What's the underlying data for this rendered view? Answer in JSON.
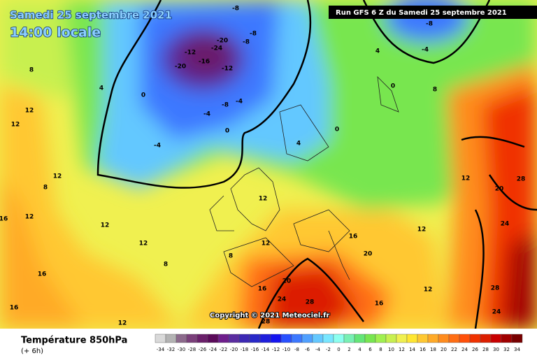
{
  "header": {
    "date": "Samedi 25 septembre 2021",
    "time": "14:00 locale",
    "run": "Run GFS 6 Z du Samedi 25 septembre 2021"
  },
  "map": {
    "copyright": "Copyright © 2021 Meteociel.fr",
    "contour_labels": [
      -8,
      -20,
      -24,
      -12,
      -20,
      -16,
      -12,
      -8,
      -8,
      -4,
      -8,
      -4,
      -4,
      0,
      0,
      4,
      8,
      12,
      12,
      8,
      12,
      12,
      16,
      12,
      12,
      8,
      16,
      16,
      12,
      16,
      20,
      24,
      28,
      28,
      16,
      12,
      24,
      28,
      24,
      28,
      20,
      12,
      8,
      4,
      0,
      -8,
      -4,
      12,
      20,
      16,
      12,
      8,
      12,
      4,
      0
    ]
  },
  "legend": {
    "title": "Température 850hPa",
    "subtitle": "(+ 6h)",
    "values": [
      -34,
      -32,
      -30,
      -28,
      -26,
      -24,
      -22,
      -20,
      -18,
      -16,
      -14,
      -12,
      -10,
      -8,
      -6,
      -4,
      -2,
      0,
      2,
      4,
      6,
      8,
      10,
      12,
      14,
      16,
      18,
      20,
      22,
      24,
      26,
      28,
      30,
      32,
      34
    ],
    "colors": [
      "#d9d9d9",
      "#b3b3b3",
      "#8c6a8c",
      "#7a3f7a",
      "#6a1f6a",
      "#5a0a5a",
      "#6e1e8c",
      "#5a2ca0",
      "#3c28b4",
      "#2828c8",
      "#1e1edc",
      "#1414f0",
      "#2850ff",
      "#3c78ff",
      "#50a0ff",
      "#64c8ff",
      "#78e6ff",
      "#8cfff0",
      "#78f0b4",
      "#64e678",
      "#78e650",
      "#a0f050",
      "#c8f050",
      "#f0f050",
      "#ffe632",
      "#ffc832",
      "#ffaa28",
      "#ff8c1e",
      "#ff6e14",
      "#ff500a",
      "#f03200",
      "#dc1e00",
      "#c80000",
      "#a00000",
      "#780000"
    ]
  }
}
